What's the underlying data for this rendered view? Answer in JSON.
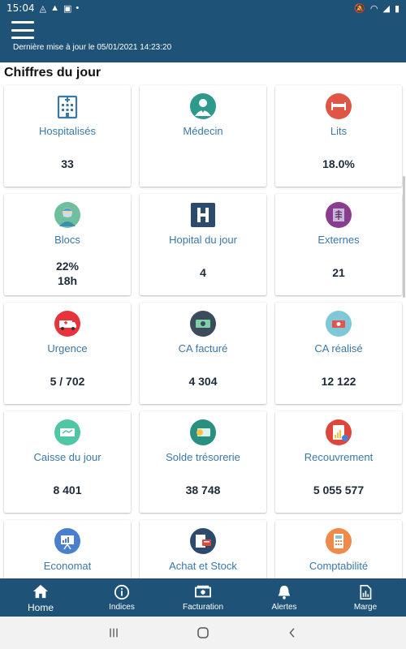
{
  "status_bar": {
    "time": "15:04"
  },
  "header": {
    "last_update": "Dernière mise à jour le 05/01/2021 14:23:20"
  },
  "section_title": "Chiffres du jour",
  "cards": [
    {
      "label": "Hospitalisés",
      "value": "33",
      "icon": "hospital-building-icon",
      "color": "#3a78a8"
    },
    {
      "label": "Médecin",
      "value": "",
      "icon": "doctor-icon",
      "color": "#2e9a8c"
    },
    {
      "label": "Lits",
      "value": "18.0%",
      "icon": "bed-icon",
      "color": "#e05545"
    },
    {
      "label": "Blocs",
      "value": "22%",
      "value2": "18h",
      "icon": "surgeon-icon",
      "color": "#6fbf9e"
    },
    {
      "label": "Hopital du jour",
      "value": "4",
      "icon": "hospital-h-icon",
      "color": "#2c4a6b"
    },
    {
      "label": "Externes",
      "value": "21",
      "icon": "xray-icon",
      "color": "#8a3d8f"
    },
    {
      "label": "Urgence",
      "value": "5 / 702",
      "icon": "ambulance-icon",
      "color": "#e8333c"
    },
    {
      "label": "CA facturé",
      "value": "4 304",
      "icon": "banknote-icon",
      "color": "#3c4c5c"
    },
    {
      "label": "CA réalisé",
      "value": "12 122",
      "icon": "money-badge-icon",
      "color": "#7fc8d8"
    },
    {
      "label": "Caisse du jour",
      "value": "8 401",
      "icon": "cash-register-icon",
      "color": "#4fc7a4"
    },
    {
      "label": "Solde trésorerie",
      "value": "38 748",
      "icon": "treasury-icon",
      "color": "#2a8f80"
    },
    {
      "label": "Recouvrement",
      "value": "5 055 577",
      "icon": "report-icon",
      "color": "#e0453c"
    },
    {
      "label": "Economat",
      "value": "",
      "icon": "presentation-icon",
      "color": "#4a7fd0"
    },
    {
      "label": "Achat et Stock",
      "value": "",
      "icon": "purchase-icon",
      "color": "#2c4a6b"
    },
    {
      "label": "Comptabilité",
      "value": "",
      "icon": "calculator-icon",
      "color": "#f08a4b"
    }
  ],
  "bottom_nav": [
    {
      "label": "Home",
      "icon": "home-icon"
    },
    {
      "label": "Indices",
      "icon": "info-icon"
    },
    {
      "label": "Facturation",
      "icon": "money-icon"
    },
    {
      "label": "Alertes",
      "icon": "bell-icon"
    },
    {
      "label": "Marge",
      "icon": "document-icon"
    }
  ]
}
